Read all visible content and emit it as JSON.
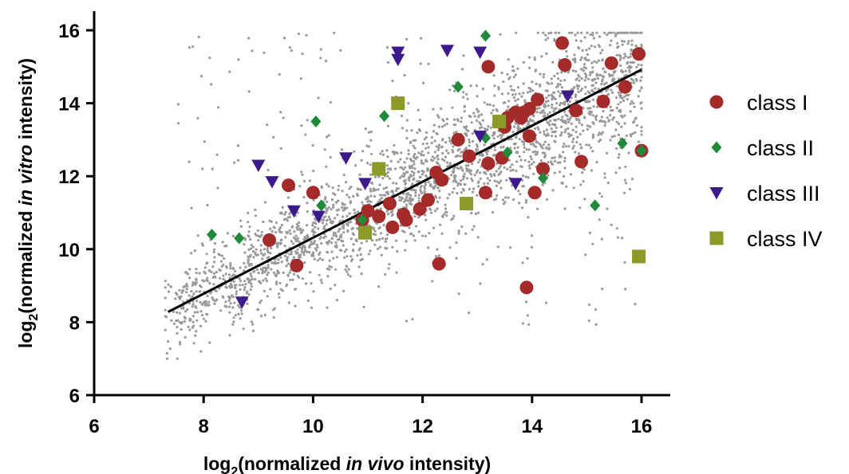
{
  "chart_data": {
    "type": "scatter",
    "xlim": [
      6,
      16
    ],
    "ylim": [
      6,
      16
    ],
    "x_ticks": [
      6,
      8,
      10,
      12,
      14,
      16
    ],
    "y_ticks": [
      6,
      8,
      10,
      12,
      14,
      16
    ],
    "xlabel": {
      "pre": "log",
      "sub": "2",
      "mid": "(normalized ",
      "em": "in vivo",
      "post": " intensity)"
    },
    "ylabel": {
      "pre": "log",
      "sub": "2",
      "mid": "(normalized ",
      "em": "in vitro",
      "post": " intensity)"
    },
    "grid": false,
    "legend_position": "right",
    "background_cloud": {
      "color": "#9a9a9a",
      "description_value_range": [
        7.3,
        16.0
      ]
    },
    "regression_line": {
      "x": [
        7.35,
        16.0
      ],
      "y": [
        8.28,
        14.92
      ],
      "color": "#000000"
    },
    "series": [
      {
        "name": "class I",
        "marker": "circle",
        "color": "#a52a2a",
        "points": [
          [
            9.2,
            10.25
          ],
          [
            9.7,
            9.55
          ],
          [
            9.55,
            11.75
          ],
          [
            10.0,
            11.55
          ],
          [
            10.9,
            10.8
          ],
          [
            11.0,
            11.05
          ],
          [
            11.2,
            10.9
          ],
          [
            11.4,
            11.25
          ],
          [
            11.45,
            10.6
          ],
          [
            11.65,
            10.95
          ],
          [
            11.7,
            10.8
          ],
          [
            11.95,
            11.1
          ],
          [
            12.1,
            11.35
          ],
          [
            12.25,
            12.1
          ],
          [
            12.35,
            11.9
          ],
          [
            12.3,
            9.6
          ],
          [
            12.65,
            13.0
          ],
          [
            12.85,
            12.55
          ],
          [
            13.15,
            11.55
          ],
          [
            13.2,
            12.35
          ],
          [
            13.2,
            15.0
          ],
          [
            13.45,
            12.5
          ],
          [
            13.5,
            13.35
          ],
          [
            13.55,
            13.6
          ],
          [
            13.7,
            13.75
          ],
          [
            13.8,
            13.6
          ],
          [
            13.85,
            13.75
          ],
          [
            13.95,
            13.85
          ],
          [
            13.95,
            13.1
          ],
          [
            14.05,
            11.55
          ],
          [
            14.1,
            14.1
          ],
          [
            14.2,
            12.2
          ],
          [
            13.9,
            8.95
          ],
          [
            14.55,
            15.65
          ],
          [
            14.6,
            15.05
          ],
          [
            14.8,
            13.8
          ],
          [
            14.9,
            12.4
          ],
          [
            15.3,
            14.05
          ],
          [
            15.45,
            15.1
          ],
          [
            15.7,
            14.45
          ],
          [
            15.95,
            15.35
          ],
          [
            16.0,
            12.7
          ]
        ]
      },
      {
        "name": "class II",
        "marker": "diamond",
        "color": "#1e8a3a",
        "points": [
          [
            8.15,
            10.4
          ],
          [
            8.65,
            10.3
          ],
          [
            10.05,
            13.5
          ],
          [
            10.15,
            11.2
          ],
          [
            10.9,
            10.8
          ],
          [
            11.3,
            13.65
          ],
          [
            12.65,
            14.45
          ],
          [
            13.15,
            13.05
          ],
          [
            13.15,
            15.85
          ],
          [
            13.55,
            12.65
          ],
          [
            14.2,
            11.95
          ],
          [
            15.15,
            11.2
          ],
          [
            15.65,
            12.9
          ],
          [
            16.0,
            12.7
          ]
        ]
      },
      {
        "name": "class III",
        "marker": "triangle-down",
        "color": "#3d1a8c",
        "points": [
          [
            8.7,
            8.55
          ],
          [
            9.0,
            12.3
          ],
          [
            9.25,
            11.85
          ],
          [
            9.65,
            11.05
          ],
          [
            10.1,
            10.9
          ],
          [
            10.6,
            12.5
          ],
          [
            10.95,
            11.8
          ],
          [
            11.55,
            15.4
          ],
          [
            11.55,
            15.2
          ],
          [
            12.45,
            15.45
          ],
          [
            13.05,
            15.4
          ],
          [
            13.05,
            13.1
          ],
          [
            13.7,
            11.8
          ],
          [
            14.65,
            14.2
          ]
        ]
      },
      {
        "name": "class IV",
        "marker": "square",
        "color": "#8c9a28",
        "points": [
          [
            10.95,
            10.45
          ],
          [
            11.2,
            12.2
          ],
          [
            11.55,
            14.0
          ],
          [
            12.8,
            11.25
          ],
          [
            13.4,
            13.5
          ],
          [
            15.95,
            9.8
          ]
        ]
      }
    ]
  }
}
